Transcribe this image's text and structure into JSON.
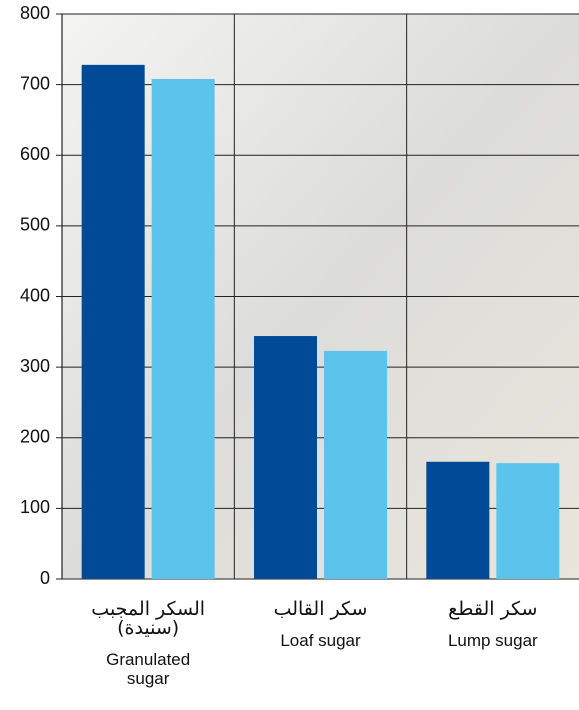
{
  "chart_data": {
    "type": "bar",
    "categories": [
      "Granulated sugar",
      "Loaf sugar",
      "Lump sugar"
    ],
    "categories_ar": [
      "السكر المجبب (سنيدة)",
      "سكر القالب",
      "سكر القطع"
    ],
    "series": [
      {
        "color": "#004a98",
        "values": [
          728,
          344,
          166
        ]
      },
      {
        "color": "#5bc3ec",
        "values": [
          708,
          323,
          164
        ]
      }
    ],
    "ylim": [
      0,
      800
    ],
    "yticks": [
      0,
      100,
      200,
      300,
      400,
      500,
      600,
      700,
      800
    ],
    "grid": true
  }
}
